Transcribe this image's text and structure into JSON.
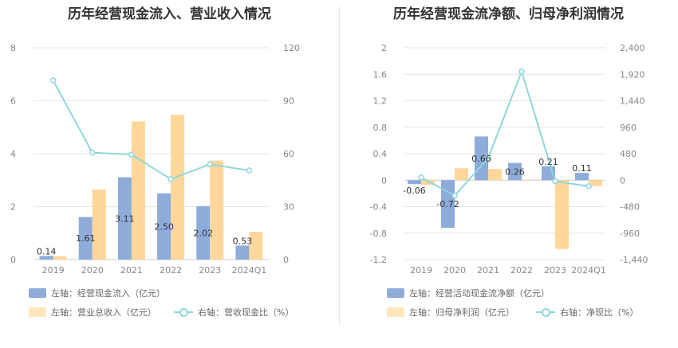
{
  "charts": {
    "left": {
      "title": "历年经营现金流入、营业收入情况",
      "legend": {
        "bar1": "左轴：经营现金流入（亿元）",
        "bar2": "左轴：营业总收入（亿元）",
        "line": "右轴：营收现金比（%）"
      }
    },
    "right": {
      "title": "历年经营现金流净额、归母净利润情况",
      "legend": {
        "bar1": "左轴：经营活动现金流净额（亿元）",
        "bar2": "左轴：归母净利润（亿元）",
        "line": "右轴：净现比（%）"
      }
    }
  },
  "colors": {
    "bar1": "#8eacd9",
    "bar2": "#ffd79a",
    "line": "#8fd7dc",
    "grid": "#e6e6e6",
    "axis": "#cccccc"
  },
  "chart_data": [
    {
      "type": "bar",
      "title": "历年经营现金流入、营业收入情况",
      "categories": [
        "2019",
        "2020",
        "2021",
        "2022",
        "2023",
        "2024Q1"
      ],
      "left_axis": {
        "ylim": [
          0,
          8
        ],
        "ticks": [
          "0",
          "2",
          "4",
          "6",
          "8"
        ]
      },
      "right_axis": {
        "ylim": [
          0,
          120
        ],
        "ticks": [
          "0",
          "30",
          "60",
          "90",
          "120"
        ]
      },
      "series": [
        {
          "name": "左轴：经营现金流入（亿元）",
          "axis": "left",
          "kind": "bar",
          "values": [
            0.14,
            1.61,
            3.11,
            2.5,
            2.02,
            0.53
          ],
          "labels": [
            "0.14",
            "1.61",
            "3.11",
            "2.50",
            "2.02",
            "0.53"
          ]
        },
        {
          "name": "左轴：营业总收入（亿元）",
          "axis": "left",
          "kind": "bar",
          "values": [
            0.13,
            2.65,
            5.22,
            5.47,
            3.74,
            1.05
          ]
        },
        {
          "name": "右轴：营收现金比（%）",
          "axis": "right",
          "kind": "line",
          "values": [
            101.5,
            60.6,
            59.5,
            45.6,
            54.0,
            50.5
          ]
        }
      ]
    },
    {
      "type": "bar",
      "title": "历年经营现金流净额、归母净利润情况",
      "categories": [
        "2019",
        "2020",
        "2021",
        "2022",
        "2023",
        "2024Q1"
      ],
      "left_axis": {
        "ylim": [
          -1.2,
          2
        ],
        "ticks": [
          "-1.2",
          "-0.8",
          "-0.4",
          "0",
          "0.4",
          "0.8",
          "1.2",
          "1.6",
          "2"
        ]
      },
      "right_axis": {
        "ylim": [
          -1440,
          2400
        ],
        "ticks": [
          "-1,440",
          "-960",
          "-480",
          "0",
          "480",
          "960",
          "1,440",
          "1,920",
          "2,400"
        ]
      },
      "series": [
        {
          "name": "左轴：经营活动现金流净额（亿元）",
          "axis": "left",
          "kind": "bar",
          "values": [
            -0.06,
            -0.72,
            0.66,
            0.26,
            0.21,
            0.11
          ],
          "labels": [
            "-0.06",
            "-0.72",
            "0.66",
            "0.26",
            "0.21",
            "0.11"
          ]
        },
        {
          "name": "左轴：归母净利润（亿元）",
          "axis": "left",
          "kind": "bar",
          "values": [
            -0.07,
            0.18,
            0.17,
            0.0,
            -1.04,
            -0.09
          ]
        },
        {
          "name": "右轴：净现比（%）",
          "axis": "right",
          "kind": "line",
          "values": [
            50,
            -280,
            400,
            1970,
            -20,
            -110
          ]
        }
      ]
    }
  ]
}
